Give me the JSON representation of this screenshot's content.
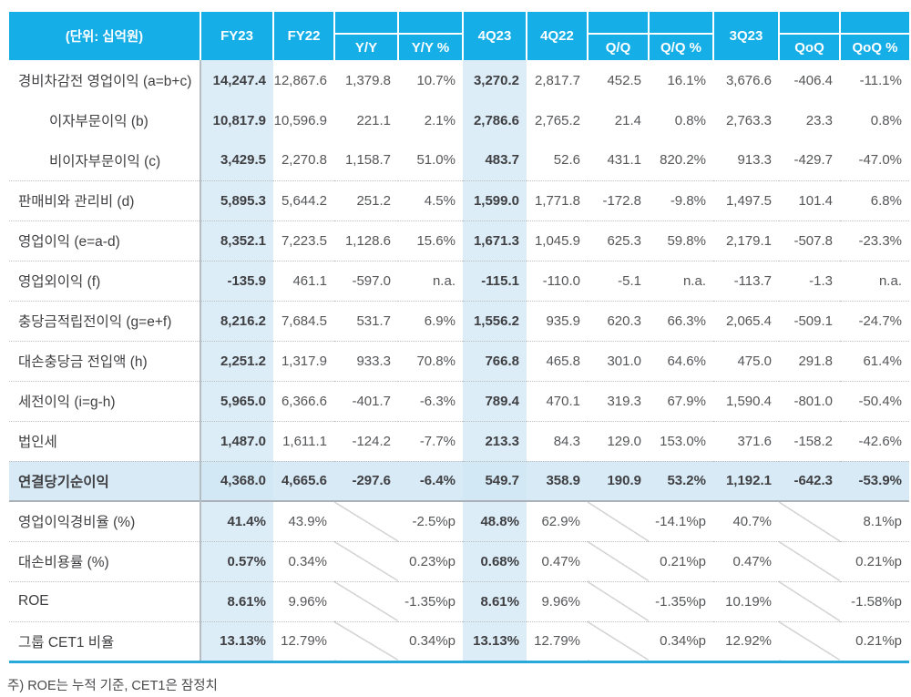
{
  "unit_label": "(단위: 십억원)",
  "columns": [
    {
      "label": "FY23",
      "sub": false
    },
    {
      "label": "FY22",
      "sub": false
    },
    {
      "label": "Y/Y",
      "sub": true
    },
    {
      "label": "Y/Y %",
      "sub": true
    },
    {
      "label": "4Q23",
      "sub": false
    },
    {
      "label": "4Q22",
      "sub": false
    },
    {
      "label": "Q/Q",
      "sub": true
    },
    {
      "label": "Q/Q %",
      "sub": true
    },
    {
      "label": "3Q23",
      "sub": false
    },
    {
      "label": "QoQ",
      "sub": true
    },
    {
      "label": "QoQ %",
      "sub": true
    }
  ],
  "rows": [
    {
      "label": "경비차감전 영업이익 (a=b+c)",
      "indent": false,
      "sep": "none",
      "type": "amount",
      "total": false,
      "values": [
        "14,247.4",
        "12,867.6",
        "1,379.8",
        "10.7%",
        "3,270.2",
        "2,817.7",
        "452.5",
        "16.1%",
        "3,676.6",
        "-406.4",
        "-11.1%"
      ]
    },
    {
      "label": "이자부문이익 (b)",
      "indent": true,
      "sep": "none",
      "type": "amount",
      "total": false,
      "values": [
        "10,817.9",
        "10,596.9",
        "221.1",
        "2.1%",
        "2,786.6",
        "2,765.2",
        "21.4",
        "0.8%",
        "2,763.3",
        "23.3",
        "0.8%"
      ]
    },
    {
      "label": "비이자부문이익 (c)",
      "indent": true,
      "sep": "none",
      "type": "amount",
      "total": false,
      "values": [
        "3,429.5",
        "2,270.8",
        "1,158.7",
        "51.0%",
        "483.7",
        "52.6",
        "431.1",
        "820.2%",
        "913.3",
        "-429.7",
        "-47.0%"
      ]
    },
    {
      "label": "판매비와 관리비 (d)",
      "indent": false,
      "sep": "dotted",
      "type": "amount",
      "total": false,
      "values": [
        "5,895.3",
        "5,644.2",
        "251.2",
        "4.5%",
        "1,599.0",
        "1,771.8",
        "-172.8",
        "-9.8%",
        "1,497.5",
        "101.4",
        "6.8%"
      ]
    },
    {
      "label": "영업이익 (e=a-d)",
      "indent": false,
      "sep": "dotted",
      "type": "amount",
      "total": false,
      "values": [
        "8,352.1",
        "7,223.5",
        "1,128.6",
        "15.6%",
        "1,671.3",
        "1,045.9",
        "625.3",
        "59.8%",
        "2,179.1",
        "-507.8",
        "-23.3%"
      ]
    },
    {
      "label": "영업외이익 (f)",
      "indent": false,
      "sep": "dotted",
      "type": "amount",
      "total": false,
      "values": [
        "-135.9",
        "461.1",
        "-597.0",
        "n.a.",
        "-115.1",
        "-110.0",
        "-5.1",
        "n.a.",
        "-113.7",
        "-1.3",
        "n.a."
      ]
    },
    {
      "label": "충당금적립전이익 (g=e+f)",
      "indent": false,
      "sep": "dotted",
      "type": "amount",
      "total": false,
      "values": [
        "8,216.2",
        "7,684.5",
        "531.7",
        "6.9%",
        "1,556.2",
        "935.9",
        "620.3",
        "66.3%",
        "2,065.4",
        "-509.1",
        "-24.7%"
      ]
    },
    {
      "label": "대손충당금 전입액 (h)",
      "indent": false,
      "sep": "dotted",
      "type": "amount",
      "total": false,
      "values": [
        "2,251.2",
        "1,317.9",
        "933.3",
        "70.8%",
        "766.8",
        "465.8",
        "301.0",
        "64.6%",
        "475.0",
        "291.8",
        "61.4%"
      ]
    },
    {
      "label": "세전이익 (i=g-h)",
      "indent": false,
      "sep": "dotted",
      "type": "amount",
      "total": false,
      "values": [
        "5,965.0",
        "6,366.6",
        "-401.7",
        "-6.3%",
        "789.4",
        "470.1",
        "319.3",
        "67.9%",
        "1,590.4",
        "-801.0",
        "-50.4%"
      ]
    },
    {
      "label": "법인세",
      "indent": false,
      "sep": "dotted",
      "type": "amount",
      "total": false,
      "values": [
        "1,487.0",
        "1,611.1",
        "-124.2",
        "-7.7%",
        "213.3",
        "84.3",
        "129.0",
        "153.0%",
        "371.6",
        "-158.2",
        "-42.6%"
      ]
    },
    {
      "label": "연결당기순이익",
      "indent": false,
      "sep": "dotted",
      "type": "amount",
      "total": true,
      "values": [
        "4,368.0",
        "4,665.6",
        "-297.6",
        "-6.4%",
        "549.7",
        "358.9",
        "190.9",
        "53.2%",
        "1,192.1",
        "-642.3",
        "-53.9%"
      ]
    },
    {
      "label": "영업이익경비율 (%)",
      "indent": false,
      "sep": "solid",
      "type": "ratio",
      "total": false,
      "values": [
        "41.4%",
        "43.9%",
        "",
        "-2.5%p",
        "48.8%",
        "62.9%",
        "",
        "-14.1%p",
        "40.7%",
        "",
        "8.1%p"
      ]
    },
    {
      "label": "대손비용률 (%)",
      "indent": false,
      "sep": "dotted",
      "type": "ratio",
      "total": false,
      "values": [
        "0.57%",
        "0.34%",
        "",
        "0.23%p",
        "0.68%",
        "0.47%",
        "",
        "0.21%p",
        "0.47%",
        "",
        "0.21%p"
      ]
    },
    {
      "label": "ROE",
      "indent": false,
      "sep": "dotted",
      "type": "ratio",
      "total": false,
      "values": [
        "8.61%",
        "9.96%",
        "",
        "-1.35%p",
        "8.61%",
        "9.96%",
        "",
        "-1.35%p",
        "10.19%",
        "",
        "-1.58%p"
      ]
    },
    {
      "label": "그룹 CET1 비율",
      "indent": false,
      "sep": "dotted",
      "type": "ratio",
      "total": false,
      "values": [
        "13.13%",
        "12.79%",
        "",
        "0.34%p",
        "13.13%",
        "12.79%",
        "",
        "0.34%p",
        "12.92%",
        "",
        "0.21%p"
      ]
    }
  ],
  "footnote": "주) ROE는 누적 기준, CET1은 잠정치",
  "colors": {
    "header_bg": "#15aee7",
    "header_text": "#ffffff",
    "highlight_column_bg": "#dcedf8",
    "total_row_bg": "#d7eaf6",
    "bottom_border": "#29a9da",
    "hatch_line": "#d5d5d5"
  }
}
